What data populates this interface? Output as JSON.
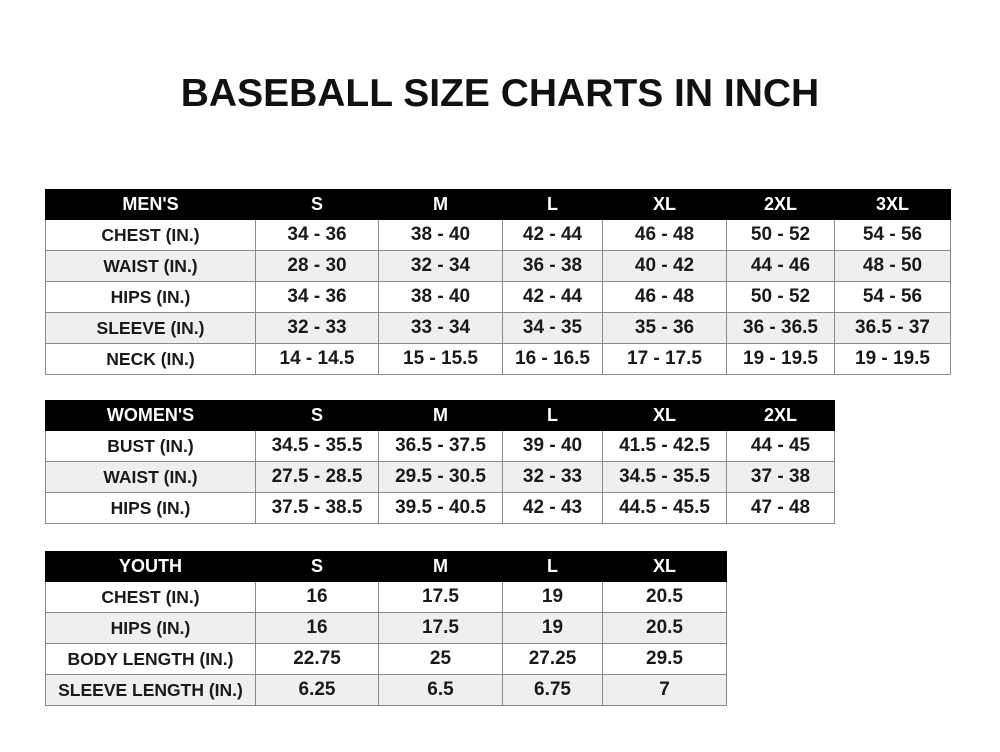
{
  "title": "BASEBALL SIZE CHARTS IN INCH",
  "colors": {
    "header_bg": "#000000",
    "header_text": "#ffffff",
    "alt_row": "#efefef"
  },
  "tables": {
    "men": {
      "headers": [
        "MEN'S",
        "S",
        "M",
        "L",
        "XL",
        "2XL",
        "3XL"
      ],
      "rows": [
        [
          "CHEST (IN.)",
          "34 - 36",
          "38 - 40",
          "42 - 44",
          "46 - 48",
          "50 - 52",
          "54 - 56"
        ],
        [
          "WAIST (IN.)",
          "28 - 30",
          "32 - 34",
          "36 - 38",
          "40 - 42",
          "44 - 46",
          "48 - 50"
        ],
        [
          "HIPS (IN.)",
          "34 - 36",
          "38 - 40",
          "42 - 44",
          "46 - 48",
          "50 - 52",
          "54 - 56"
        ],
        [
          "SLEEVE (IN.)",
          "32 - 33",
          "33 - 34",
          "34 - 35",
          "35 - 36",
          "36 - 36.5",
          "36.5 - 37"
        ],
        [
          "NECK (IN.)",
          "14 - 14.5",
          "15 - 15.5",
          "16 - 16.5",
          "17 - 17.5",
          "19 - 19.5",
          "19 - 19.5"
        ]
      ]
    },
    "women": {
      "headers": [
        "WOMEN'S",
        "S",
        "M",
        "L",
        "XL",
        "2XL"
      ],
      "rows": [
        [
          "BUST (IN.)",
          "34.5 - 35.5",
          "36.5 - 37.5",
          "39 - 40",
          "41.5 - 42.5",
          "44 - 45"
        ],
        [
          "WAIST (IN.)",
          "27.5 - 28.5",
          "29.5 - 30.5",
          "32 - 33",
          "34.5 - 35.5",
          "37 - 38"
        ],
        [
          "HIPS (IN.)",
          "37.5 - 38.5",
          "39.5 - 40.5",
          "42 - 43",
          "44.5 - 45.5",
          "47 - 48"
        ]
      ]
    },
    "youth": {
      "headers": [
        "YOUTH",
        "S",
        "M",
        "L",
        "XL"
      ],
      "rows": [
        [
          "CHEST (IN.)",
          "16",
          "17.5",
          "19",
          "20.5"
        ],
        [
          "HIPS (IN.)",
          "16",
          "17.5",
          "19",
          "20.5"
        ],
        [
          "BODY LENGTH (IN.)",
          "22.75",
          "25",
          "27.25",
          "29.5"
        ],
        [
          "SLEEVE LENGTH (IN.)",
          "6.25",
          "6.5",
          "6.75",
          "7"
        ]
      ]
    }
  }
}
